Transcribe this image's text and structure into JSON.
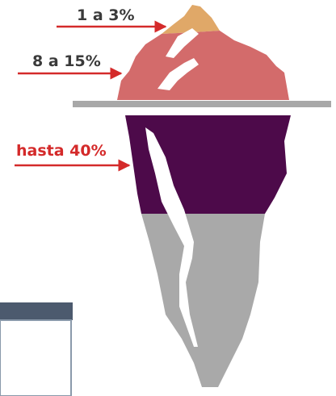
{
  "labels": [
    "1 a 3%",
    "8 a 15%",
    "hasta 40%"
  ]
}
